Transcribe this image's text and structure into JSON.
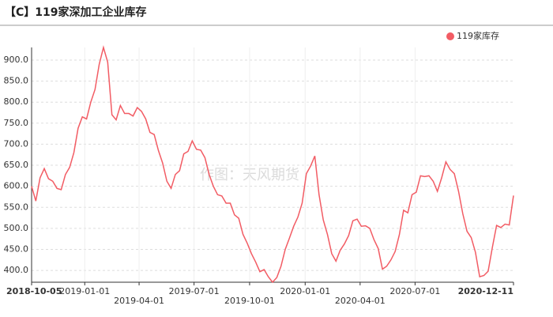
{
  "chart_data": {
    "type": "line",
    "title": "【C】119家深加工企业库存",
    "watermark": "作图：天风期货",
    "x": [
      "2018-10-05",
      "2018-10-12",
      "2018-10-19",
      "2018-10-26",
      "2018-11-02",
      "2018-11-09",
      "2018-11-16",
      "2018-11-23",
      "2018-11-30",
      "2018-12-07",
      "2018-12-14",
      "2018-12-21",
      "2018-12-28",
      "2019-01-04",
      "2019-01-11",
      "2019-01-18",
      "2019-01-25",
      "2019-02-01",
      "2019-02-08",
      "2019-02-15",
      "2019-02-22",
      "2019-03-01",
      "2019-03-08",
      "2019-03-15",
      "2019-03-22",
      "2019-03-29",
      "2019-04-05",
      "2019-04-12",
      "2019-04-19",
      "2019-04-26",
      "2019-05-03",
      "2019-05-10",
      "2019-05-17",
      "2019-05-24",
      "2019-05-31",
      "2019-06-07",
      "2019-06-14",
      "2019-06-21",
      "2019-06-28",
      "2019-07-05",
      "2019-07-12",
      "2019-07-19",
      "2019-07-26",
      "2019-08-02",
      "2019-08-09",
      "2019-08-16",
      "2019-08-23",
      "2019-08-30",
      "2019-09-06",
      "2019-09-13",
      "2019-09-20",
      "2019-09-27",
      "2019-10-04",
      "2019-10-11",
      "2019-10-18",
      "2019-10-25",
      "2019-11-01",
      "2019-11-08",
      "2019-11-15",
      "2019-11-22",
      "2019-11-29",
      "2019-12-06",
      "2019-12-13",
      "2019-12-20",
      "2019-12-27",
      "2020-01-03",
      "2020-01-10",
      "2020-01-17",
      "2020-01-24",
      "2020-01-31",
      "2020-02-07",
      "2020-02-14",
      "2020-02-21",
      "2020-02-28",
      "2020-03-06",
      "2020-03-13",
      "2020-03-20",
      "2020-03-27",
      "2020-04-03",
      "2020-04-10",
      "2020-04-17",
      "2020-04-24",
      "2020-05-01",
      "2020-05-08",
      "2020-05-15",
      "2020-05-22",
      "2020-05-29",
      "2020-06-05",
      "2020-06-12",
      "2020-06-19",
      "2020-06-26",
      "2020-07-03",
      "2020-07-10",
      "2020-07-17",
      "2020-07-24",
      "2020-07-31",
      "2020-08-07",
      "2020-08-14",
      "2020-08-21",
      "2020-08-28",
      "2020-09-04",
      "2020-09-11",
      "2020-09-18",
      "2020-09-25",
      "2020-10-02",
      "2020-10-09",
      "2020-10-16",
      "2020-10-23",
      "2020-10-30",
      "2020-11-06",
      "2020-11-13",
      "2020-11-20",
      "2020-11-27",
      "2020-12-04",
      "2020-12-11"
    ],
    "series": [
      {
        "name": "119家库存",
        "color": "#f25c64",
        "values": [
          600,
          565,
          620,
          642,
          618,
          612,
          595,
          592,
          628,
          645,
          680,
          738,
          765,
          760,
          800,
          830,
          890,
          930,
          895,
          770,
          758,
          792,
          773,
          773,
          767,
          787,
          778,
          760,
          728,
          723,
          685,
          655,
          612,
          595,
          628,
          637,
          677,
          683,
          708,
          688,
          686,
          668,
          628,
          600,
          580,
          577,
          560,
          560,
          532,
          524,
          486,
          465,
          440,
          420,
          397,
          402,
          385,
          372,
          383,
          410,
          450,
          477,
          505,
          527,
          560,
          630,
          648,
          672,
          580,
          520,
          485,
          440,
          422,
          448,
          463,
          483,
          518,
          522,
          505,
          506,
          500,
          473,
          452,
          403,
          410,
          425,
          445,
          485,
          543,
          537,
          580,
          586,
          625,
          623,
          625,
          612,
          588,
          620,
          658,
          640,
          630,
          588,
          535,
          493,
          478,
          443,
          385,
          388,
          398,
          455,
          507,
          502,
          510,
          508,
          578
        ]
      }
    ],
    "xlim": [
      "2018-10-05",
      "2020-12-11"
    ],
    "xticks": [
      "2018-10-05",
      "2019-01-01",
      "2019-04-01",
      "2019-07-01",
      "2019-10-01",
      "2020-01-01",
      "2020-04-01",
      "2020-07-01",
      "2020-12-11"
    ],
    "ylim": [
      372,
      930
    ],
    "yticks": [
      {
        "value": 400,
        "label": "400.0"
      },
      {
        "value": 450,
        "label": "450.0"
      },
      {
        "value": 500,
        "label": "500.0"
      },
      {
        "value": 550,
        "label": "550.0"
      },
      {
        "value": 600,
        "label": "600.0"
      },
      {
        "value": 650,
        "label": "650.0"
      },
      {
        "value": 700,
        "label": "700.0"
      },
      {
        "value": 750,
        "label": "750.0"
      },
      {
        "value": 800,
        "label": "800.0"
      },
      {
        "value": 850,
        "label": "850.0"
      },
      {
        "value": 900,
        "label": "900.0"
      }
    ],
    "grid": true,
    "legend": "top-right"
  }
}
